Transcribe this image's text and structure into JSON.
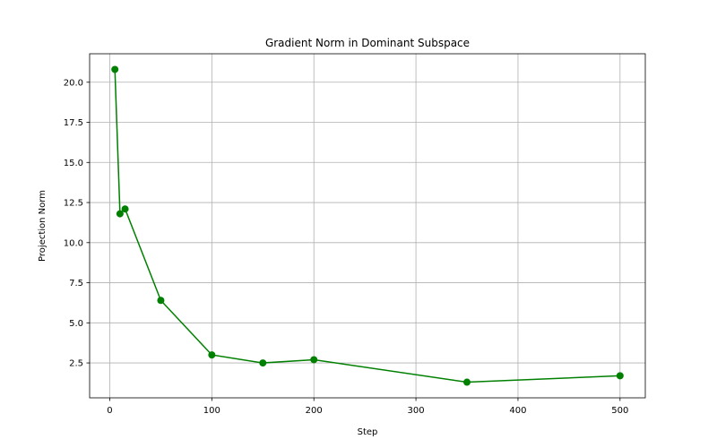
{
  "chart_data": {
    "type": "line",
    "title": "Gradient Norm in Dominant Subspace",
    "xlabel": "Step",
    "ylabel": "Projection Norm",
    "x": [
      5,
      10,
      15,
      50,
      100,
      150,
      200,
      350,
      500
    ],
    "series": [
      {
        "values": [
          20.8,
          11.8,
          12.1,
          6.4,
          3.0,
          2.5,
          2.7,
          1.3,
          1.7
        ],
        "color": "#008000",
        "marker": "circle"
      }
    ],
    "xlim": [
      -19.75,
      524.75
    ],
    "ylim": [
      0.325,
      21.775
    ],
    "xticks": [
      0,
      100,
      200,
      300,
      400,
      500
    ],
    "yticks": [
      2.5,
      5.0,
      7.5,
      10.0,
      12.5,
      15.0,
      17.5,
      20.0
    ],
    "ytick_labels": [
      "2.5",
      "5.0",
      "7.5",
      "10.0",
      "12.5",
      "15.0",
      "17.5",
      "20.0"
    ],
    "grid": true
  }
}
